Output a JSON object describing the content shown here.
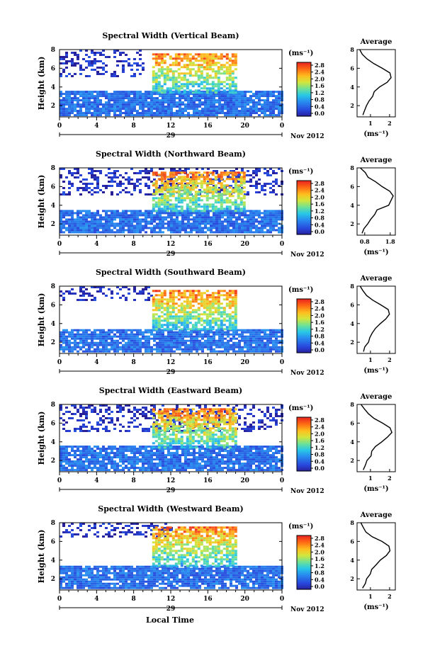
{
  "figure": {
    "x_axis_label": "Local Time",
    "date_label": "29",
    "month_label": "Nov 2012",
    "unit_label": "(ms⁻¹)",
    "avg_title": "Average",
    "avg_xlabel": "(ms⁻¹)"
  },
  "chart_data": [
    {
      "type": "heatmap",
      "title": "Spectral Width (Vertical Beam)",
      "ylabel": "Height (km)",
      "xticks": [
        "0",
        "4",
        "8",
        "12",
        "16",
        "20",
        "0"
      ],
      "xlim": [
        0,
        24
      ],
      "yticks": [
        "2",
        "4",
        "6",
        "8"
      ],
      "ylim": [
        0.8,
        8
      ],
      "colorbar": {
        "ticks": [
          "2.8",
          "2.4",
          "2.0",
          "1.6",
          "1.2",
          "0.8",
          "0.4",
          "0.0"
        ],
        "range": [
          0,
          2.8
        ]
      },
      "regions": [
        {
          "desc": "low weak echo layer",
          "x": [
            0,
            24
          ],
          "y": [
            1.0,
            3.6
          ],
          "value": 0.6
        },
        {
          "desc": "upper sparse weak echo",
          "x": [
            0,
            9
          ],
          "y": [
            5.2,
            8.0
          ],
          "value": 0.2
        },
        {
          "desc": "strong convective region",
          "x": [
            10,
            19
          ],
          "y": [
            3.5,
            7.6
          ],
          "value": 2.4
        }
      ],
      "average_profile": {
        "xticks": [
          "1",
          "2"
        ],
        "xlim": [
          0.3,
          2.3
        ],
        "yticks": [
          "2",
          "4",
          "6",
          "8"
        ],
        "ylim": [
          0.8,
          8
        ],
        "heights": [
          1.0,
          1.5,
          2.0,
          2.5,
          3.0,
          3.5,
          4.0,
          4.5,
          5.0,
          5.5,
          6.0,
          6.5,
          7.0,
          7.5,
          8.0
        ],
        "values": [
          0.6,
          0.7,
          0.8,
          0.9,
          1.1,
          1.2,
          1.5,
          1.9,
          2.1,
          2.0,
          1.6,
          1.2,
          0.8,
          0.6,
          0.4
        ]
      }
    },
    {
      "type": "heatmap",
      "title": "Spectral Width (Northward Beam)",
      "ylabel": "Height (km)",
      "xticks": [
        "0",
        "4",
        "8",
        "12",
        "16",
        "20",
        "0"
      ],
      "xlim": [
        0,
        24
      ],
      "yticks": [
        "2",
        "4",
        "6",
        "8"
      ],
      "ylim": [
        0.8,
        8
      ],
      "colorbar": {
        "ticks": [
          "2.8",
          "2.4",
          "2.0",
          "1.6",
          "1.2",
          "0.8",
          "0.4",
          "0.0"
        ],
        "range": [
          0,
          2.8
        ]
      },
      "regions": [
        {
          "desc": "low weak echo layer",
          "x": [
            0,
            24
          ],
          "y": [
            1.0,
            3.5
          ],
          "value": 0.6
        },
        {
          "desc": "upper sparse weak echo",
          "x": [
            0,
            24
          ],
          "y": [
            5.2,
            8.0
          ],
          "value": 0.2
        },
        {
          "desc": "strong convective region",
          "x": [
            10,
            20
          ],
          "y": [
            3.5,
            7.6
          ],
          "value": 2.4
        }
      ],
      "average_profile": {
        "xticks": [
          "0.8",
          "1.8"
        ],
        "xlim": [
          0.5,
          2.0
        ],
        "yticks": [
          "2",
          "4",
          "6",
          "8"
        ],
        "ylim": [
          0.8,
          8
        ],
        "heights": [
          1.0,
          1.5,
          2.0,
          2.5,
          3.0,
          3.5,
          4.0,
          4.5,
          5.0,
          5.5,
          6.0,
          6.5,
          7.0,
          7.5,
          8.0
        ],
        "values": [
          0.7,
          0.8,
          0.9,
          1.0,
          1.2,
          1.3,
          1.7,
          1.8,
          1.9,
          1.8,
          1.5,
          1.2,
          0.9,
          0.8,
          0.6
        ]
      }
    },
    {
      "type": "heatmap",
      "title": "Spectral Width (Southward Beam)",
      "ylabel": "Height (km)",
      "xticks": [
        "0",
        "4",
        "8",
        "12",
        "16",
        "20",
        "0"
      ],
      "xlim": [
        0,
        24
      ],
      "yticks": [
        "2",
        "4",
        "6",
        "8"
      ],
      "ylim": [
        0.8,
        8
      ],
      "colorbar": {
        "ticks": [
          "2.8",
          "2.4",
          "2.0",
          "1.6",
          "1.2",
          "0.8",
          "0.4",
          "0.0"
        ],
        "range": [
          0,
          2.8
        ]
      },
      "regions": [
        {
          "desc": "low weak echo layer",
          "x": [
            0,
            24
          ],
          "y": [
            1.0,
            3.4
          ],
          "value": 0.6
        },
        {
          "desc": "upper sparse weak echo",
          "x": [
            0,
            10
          ],
          "y": [
            6.5,
            8.0
          ],
          "value": 0.2
        },
        {
          "desc": "strong convective region",
          "x": [
            10,
            19
          ],
          "y": [
            3.5,
            7.6
          ],
          "value": 2.4
        }
      ],
      "average_profile": {
        "xticks": [
          "1",
          "2"
        ],
        "xlim": [
          0.3,
          2.3
        ],
        "yticks": [
          "2",
          "4",
          "6",
          "8"
        ],
        "ylim": [
          0.8,
          8
        ],
        "heights": [
          1.0,
          1.5,
          2.0,
          2.5,
          3.0,
          3.5,
          4.0,
          4.5,
          5.0,
          5.5,
          6.0,
          6.5,
          7.0,
          7.5,
          8.0
        ],
        "values": [
          0.6,
          0.7,
          0.9,
          1.0,
          1.1,
          1.3,
          1.5,
          1.8,
          2.0,
          1.9,
          1.5,
          1.1,
          0.8,
          0.6,
          0.5
        ]
      }
    },
    {
      "type": "heatmap",
      "title": "Spectral Width (Eastward Beam)",
      "ylabel": "Height (km)",
      "xticks": [
        "0",
        "4",
        "8",
        "12",
        "16",
        "20",
        "0"
      ],
      "xlim": [
        0,
        24
      ],
      "yticks": [
        "2",
        "4",
        "6",
        "8"
      ],
      "ylim": [
        0.8,
        8
      ],
      "colorbar": {
        "ticks": [
          "2.8",
          "2.4",
          "2.0",
          "1.6",
          "1.2",
          "0.8",
          "0.4",
          "0.0"
        ],
        "range": [
          0,
          2.8
        ]
      },
      "regions": [
        {
          "desc": "low weak echo layer",
          "x": [
            0,
            24
          ],
          "y": [
            1.0,
            3.6
          ],
          "value": 0.6
        },
        {
          "desc": "upper sparse weak echo",
          "x": [
            0,
            24
          ],
          "y": [
            5.2,
            8.0
          ],
          "value": 0.2
        },
        {
          "desc": "strong convective region",
          "x": [
            10,
            19
          ],
          "y": [
            3.5,
            7.6
          ],
          "value": 2.4
        }
      ],
      "average_profile": {
        "xticks": [
          "1",
          "2"
        ],
        "xlim": [
          0.3,
          2.3
        ],
        "yticks": [
          "2",
          "4",
          "6",
          "8"
        ],
        "ylim": [
          0.8,
          8
        ],
        "heights": [
          1.0,
          1.5,
          2.0,
          2.5,
          3.0,
          3.5,
          4.0,
          4.5,
          5.0,
          5.5,
          6.0,
          6.5,
          7.0,
          7.5,
          8.0
        ],
        "values": [
          0.6,
          0.7,
          0.8,
          1.0,
          1.1,
          1.3,
          1.6,
          1.9,
          2.1,
          2.0,
          1.6,
          1.2,
          0.9,
          0.7,
          0.5
        ]
      }
    },
    {
      "type": "heatmap",
      "title": "Spectral Width (Westward Beam)",
      "ylabel": "Height (km)",
      "xticks": [
        "0",
        "4",
        "8",
        "12",
        "16",
        "20",
        "0"
      ],
      "xlim": [
        0,
        24
      ],
      "yticks": [
        "2",
        "4",
        "6",
        "8"
      ],
      "ylim": [
        0.8,
        8
      ],
      "colorbar": {
        "ticks": [
          "2.8",
          "2.4",
          "2.0",
          "1.6",
          "1.2",
          "0.8",
          "0.4",
          "0.0"
        ],
        "range": [
          0,
          2.8
        ]
      },
      "regions": [
        {
          "desc": "low weak echo layer",
          "x": [
            0,
            24
          ],
          "y": [
            1.0,
            3.4
          ],
          "value": 0.6
        },
        {
          "desc": "upper sparse weak echo",
          "x": [
            0,
            12
          ],
          "y": [
            6.5,
            8.0
          ],
          "value": 0.2
        },
        {
          "desc": "strong convective region",
          "x": [
            10,
            19
          ],
          "y": [
            3.5,
            7.6
          ],
          "value": 2.4
        }
      ],
      "average_profile": {
        "xticks": [
          "1",
          "2"
        ],
        "xlim": [
          0.3,
          2.3
        ],
        "yticks": [
          "2",
          "4",
          "6",
          "8"
        ],
        "ylim": [
          0.8,
          8
        ],
        "heights": [
          1.0,
          1.5,
          2.0,
          2.5,
          3.0,
          3.5,
          4.0,
          4.5,
          5.0,
          5.5,
          6.0,
          6.5,
          7.0,
          7.5,
          8.0
        ],
        "values": [
          0.6,
          0.7,
          0.8,
          1.0,
          1.1,
          1.3,
          1.5,
          1.8,
          2.0,
          2.0,
          1.6,
          1.1,
          0.8,
          0.6,
          0.5
        ]
      }
    }
  ]
}
